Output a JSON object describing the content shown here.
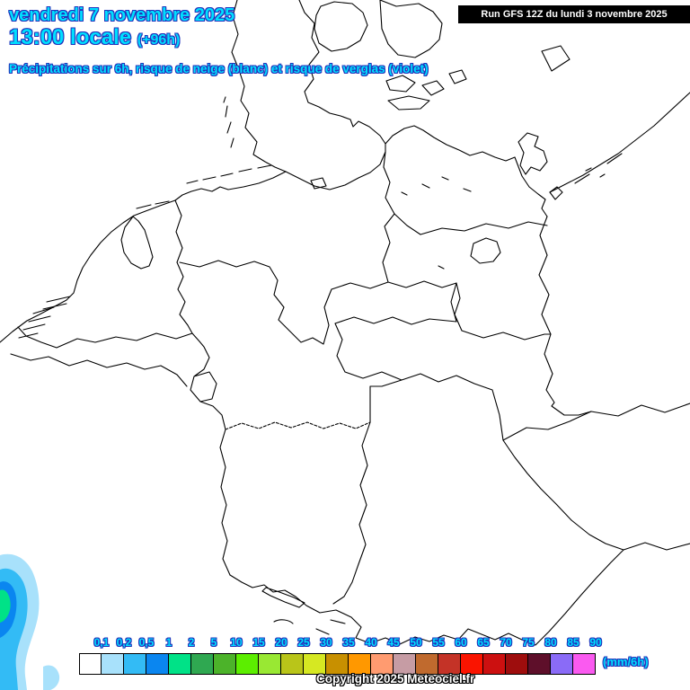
{
  "header": {
    "date_line": "vendredi 7 novembre 2025",
    "time_line": "13:00 locale",
    "time_offset": "(+96h)",
    "subtitle": "Précipitations sur 6h, risque de neige (blanc) et risque de verglas (violet)",
    "run_info": "Run GFS 12Z du lundi 3 novembre 2025"
  },
  "colors": {
    "title_fill": "#00DFFF",
    "title_outline": "#2233BB",
    "label_fill": "#33CCFF",
    "run_box_bg": "#000000",
    "run_box_text": "#FFFFFF",
    "map_line": "#000000",
    "precip_outer": "#A8E1FB",
    "precip_mid": "#33BBF5",
    "precip_inner": "#0A86F0",
    "precip_core": "#00E287"
  },
  "legend": {
    "unit_label": "(mm/6h)",
    "cells": [
      {
        "label": "0,1",
        "color": "#FFFFFF"
      },
      {
        "label": "0,2",
        "color": "#A8E1FB"
      },
      {
        "label": "0,5",
        "color": "#33BBF5"
      },
      {
        "label": "1",
        "color": "#0A86F0"
      },
      {
        "label": "2",
        "color": "#00E287"
      },
      {
        "label": "5",
        "color": "#2FA851"
      },
      {
        "label": "10",
        "color": "#4CB32A"
      },
      {
        "label": "15",
        "color": "#5CEE00"
      },
      {
        "label": "20",
        "color": "#99E833"
      },
      {
        "label": "25",
        "color": "#B9C519"
      },
      {
        "label": "30",
        "color": "#D6E822"
      },
      {
        "label": "35",
        "color": "#C89000"
      },
      {
        "label": "40",
        "color": "#FF9800"
      },
      {
        "label": "45",
        "color": "#FF9B70"
      },
      {
        "label": "50",
        "color": "#C69CA4"
      },
      {
        "label": "55",
        "color": "#C06A2E"
      },
      {
        "label": "60",
        "color": "#C43327"
      },
      {
        "label": "65",
        "color": "#FA1400"
      },
      {
        "label": "70",
        "color": "#CC1010"
      },
      {
        "label": "75",
        "color": "#9E0D0D"
      },
      {
        "label": "80",
        "color": "#5E0F2A"
      },
      {
        "label": "85",
        "color": "#8A6BF7"
      },
      {
        "label": "90",
        "color": "#FA5AF0"
      }
    ]
  },
  "footer": {
    "copyright": "Copyright 2025 Meteociel.fr"
  }
}
